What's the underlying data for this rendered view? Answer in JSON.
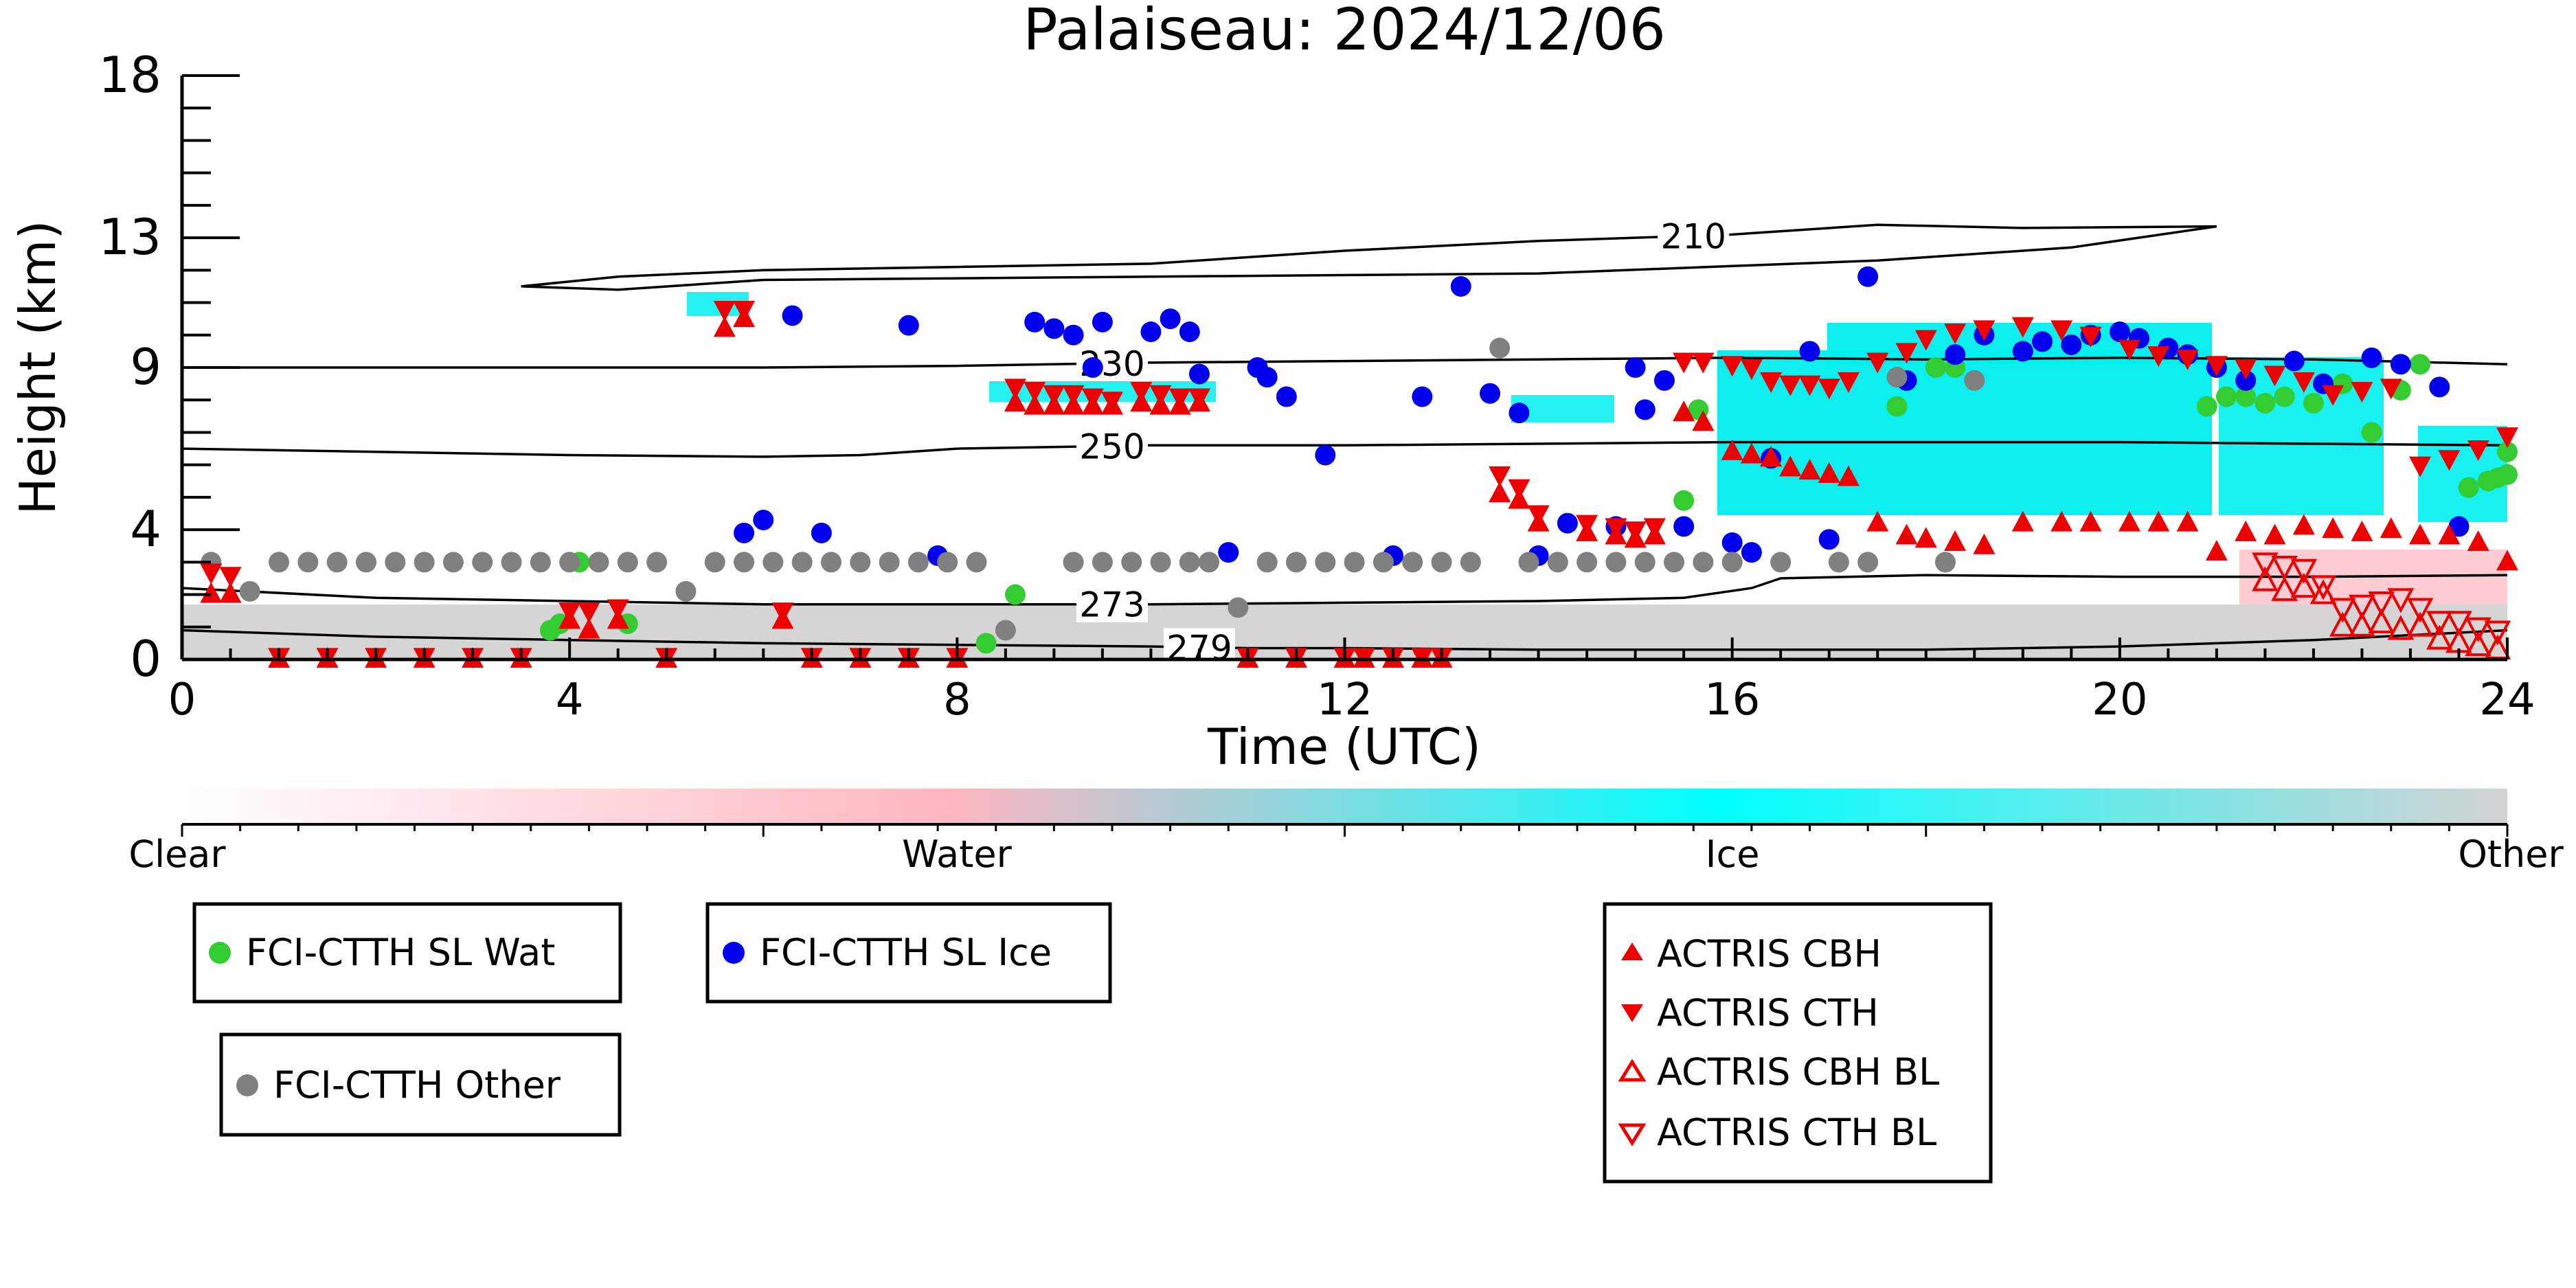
{
  "chart_data": {
    "type": "scatter",
    "title": "Palaiseau: 2024/12/06",
    "xlabel": "Time (UTC)",
    "ylabel": "Height (km)",
    "xlim": [
      0,
      24
    ],
    "ylim": [
      0,
      18
    ],
    "x_ticks": [
      0,
      4,
      8,
      12,
      16,
      20,
      24
    ],
    "y_ticks": [
      0,
      4,
      9,
      13,
      18
    ],
    "y_tick_labels": [
      "0",
      "4",
      "9",
      "13",
      "18"
    ],
    "grid": false,
    "colorbar": {
      "labels": [
        "Clear",
        "Water",
        "Ice",
        "Other"
      ],
      "colors": [
        "#ffffff",
        "#ffb6c1",
        "#00ffff",
        "#d3d3d3"
      ]
    },
    "contours": [
      {
        "label": "210",
        "label_x": 15.6,
        "points": [
          [
            3.5,
            11.5
          ],
          [
            4.5,
            11.8
          ],
          [
            6,
            12.0
          ],
          [
            8,
            12.1
          ],
          [
            10,
            12.2
          ],
          [
            12,
            12.6
          ],
          [
            14,
            12.9
          ],
          [
            16,
            13.1
          ],
          [
            17.5,
            13.4
          ],
          [
            19,
            13.3
          ],
          [
            21,
            13.35
          ],
          [
            19.5,
            12.7
          ],
          [
            17.5,
            12.3
          ],
          [
            14,
            11.9
          ],
          [
            10,
            11.8
          ],
          [
            6,
            11.7
          ],
          [
            4.5,
            11.4
          ],
          [
            3.5,
            11.5
          ]
        ]
      },
      {
        "label": "230",
        "label_x": 9.6,
        "points": [
          [
            0,
            9.0
          ],
          [
            2,
            9.0
          ],
          [
            4,
            9.0
          ],
          [
            6,
            9.0
          ],
          [
            8,
            9.05
          ],
          [
            10,
            9.15
          ],
          [
            12,
            9.2
          ],
          [
            14,
            9.25
          ],
          [
            16,
            9.3
          ],
          [
            18,
            9.25
          ],
          [
            20,
            9.3
          ],
          [
            22,
            9.25
          ],
          [
            24,
            9.1
          ]
        ]
      },
      {
        "label": "250",
        "label_x": 9.6,
        "points": [
          [
            0,
            6.5
          ],
          [
            2,
            6.4
          ],
          [
            4,
            6.3
          ],
          [
            6,
            6.25
          ],
          [
            7,
            6.3
          ],
          [
            8,
            6.5
          ],
          [
            10,
            6.6
          ],
          [
            12,
            6.6
          ],
          [
            14,
            6.65
          ],
          [
            16,
            6.7
          ],
          [
            18,
            6.7
          ],
          [
            20,
            6.7
          ],
          [
            22,
            6.65
          ],
          [
            24,
            6.6
          ]
        ]
      },
      {
        "label": "273",
        "label_x": 9.6,
        "points": [
          [
            0,
            2.2
          ],
          [
            2,
            1.9
          ],
          [
            4,
            1.8
          ],
          [
            6,
            1.7
          ],
          [
            8,
            1.7
          ],
          [
            10,
            1.7
          ],
          [
            12,
            1.75
          ],
          [
            14,
            1.8
          ],
          [
            15.5,
            1.9
          ],
          [
            16.2,
            2.2
          ],
          [
            16.5,
            2.5
          ],
          [
            18,
            2.6
          ],
          [
            20,
            2.55
          ],
          [
            22,
            2.55
          ],
          [
            24,
            2.6
          ]
        ]
      },
      {
        "label": "279",
        "label_x": 10.5,
        "points": [
          [
            0,
            0.9
          ],
          [
            2,
            0.7
          ],
          [
            4,
            0.6
          ],
          [
            6,
            0.5
          ],
          [
            8,
            0.45
          ],
          [
            10,
            0.4
          ],
          [
            11,
            0.35
          ],
          [
            12,
            0.35
          ],
          [
            14,
            0.3
          ],
          [
            16,
            0.3
          ],
          [
            18,
            0.3
          ],
          [
            20,
            0.4
          ],
          [
            22,
            0.6
          ],
          [
            24,
            0.9
          ]
        ]
      }
    ],
    "series": [
      {
        "name": "FCI-CTTH SL Wat",
        "marker": "circle",
        "color": "#33cc33",
        "x": [
          3.8,
          3.9,
          4.1,
          4.6,
          8.3,
          8.6,
          15.5,
          15.65,
          17.7,
          18.1,
          18.3,
          19.0,
          20.9,
          21.1,
          21.3,
          21.5,
          21.7,
          22.0,
          22.3,
          22.6,
          22.9,
          23.1,
          23.9,
          24.0,
          24.0,
          23.8,
          23.6
        ],
        "y": [
          0.9,
          1.1,
          3.0,
          1.1,
          0.5,
          2.0,
          4.9,
          7.7,
          7.8,
          9.0,
          9.0,
          9.5,
          7.8,
          8.1,
          8.1,
          7.9,
          8.1,
          7.9,
          8.5,
          7.0,
          8.3,
          9.1,
          5.6,
          5.7,
          6.4,
          5.5,
          5.3
        ]
      },
      {
        "name": "FCI-CTTH SL Ice",
        "marker": "circle",
        "color": "#0000ee",
        "x": [
          5.8,
          6.0,
          6.3,
          6.6,
          7.5,
          7.8,
          8.8,
          9.0,
          9.2,
          9.4,
          9.5,
          10.0,
          10.2,
          10.4,
          10.5,
          10.8,
          11.1,
          11.2,
          11.4,
          11.8,
          12.5,
          12.8,
          13.2,
          13.5,
          13.8,
          14.0,
          14.3,
          14.8,
          15.0,
          15.1,
          15.3,
          15.5,
          16.0,
          16.2,
          16.4,
          16.8,
          17.0,
          17.4,
          17.8,
          18.3,
          18.6,
          19.0,
          19.2,
          19.5,
          19.7,
          20.0,
          20.2,
          20.5,
          20.7,
          21.0,
          21.3,
          21.8,
          22.1,
          22.6,
          22.9,
          23.3,
          23.5
        ],
        "y": [
          3.9,
          4.3,
          10.6,
          3.9,
          10.3,
          3.2,
          10.4,
          10.2,
          10.0,
          9.0,
          10.4,
          10.1,
          10.5,
          10.1,
          8.8,
          3.3,
          9.0,
          8.7,
          8.1,
          6.3,
          3.2,
          8.1,
          11.5,
          8.2,
          7.6,
          3.2,
          4.2,
          4.1,
          9.0,
          7.7,
          8.6,
          4.1,
          3.6,
          3.3,
          6.2,
          9.5,
          3.7,
          11.8,
          8.6,
          9.4,
          10.0,
          9.5,
          9.8,
          9.7,
          10.0,
          10.1,
          9.9,
          9.6,
          9.4,
          9.0,
          8.6,
          9.2,
          8.5,
          9.3,
          9.1,
          8.4,
          4.1
        ]
      },
      {
        "name": "FCI-CTTH Other",
        "marker": "circle",
        "color": "#808080",
        "x": [
          0.3,
          0.7,
          1.0,
          1.3,
          1.6,
          1.9,
          2.2,
          2.5,
          2.8,
          3.1,
          3.4,
          3.7,
          4.0,
          4.3,
          4.6,
          4.9,
          5.2,
          5.5,
          5.8,
          6.1,
          6.4,
          6.7,
          7.0,
          7.3,
          7.6,
          7.9,
          8.2,
          8.5,
          9.2,
          9.5,
          9.8,
          10.1,
          10.4,
          10.6,
          10.9,
          11.2,
          11.5,
          11.8,
          12.1,
          12.4,
          12.7,
          13.0,
          13.3,
          13.6,
          13.9,
          14.2,
          14.5,
          14.8,
          15.1,
          15.4,
          15.7,
          16.0,
          16.5,
          17.1,
          17.4,
          17.7,
          18.2,
          18.5
        ],
        "y": [
          3.0,
          2.1,
          3.0,
          3.0,
          3.0,
          3.0,
          3.0,
          3.0,
          3.0,
          3.0,
          3.0,
          3.0,
          3.0,
          3.0,
          3.0,
          3.0,
          2.1,
          3.0,
          3.0,
          3.0,
          3.0,
          3.0,
          3.0,
          3.0,
          3.0,
          3.0,
          3.0,
          0.9,
          3.0,
          3.0,
          3.0,
          3.0,
          3.0,
          3.0,
          1.6,
          3.0,
          3.0,
          3.0,
          3.0,
          3.0,
          3.0,
          3.0,
          3.0,
          9.6,
          3.0,
          3.0,
          3.0,
          3.0,
          3.0,
          3.0,
          3.0,
          3.0,
          3.0,
          3.0,
          3.0,
          8.7,
          3.0,
          8.6
        ]
      },
      {
        "name": "ACTRIS CBH",
        "marker": "triangle-up",
        "color": "#ee0000",
        "x": [
          0.3,
          0.5,
          1.0,
          1.5,
          2.0,
          2.5,
          3.0,
          3.5,
          4.0,
          4.2,
          4.5,
          5.0,
          5.6,
          5.8,
          6.2,
          6.5,
          7.0,
          7.5,
          8.0,
          8.6,
          8.8,
          9.0,
          9.2,
          9.4,
          9.6,
          9.9,
          10.1,
          10.3,
          10.5,
          11.0,
          11.5,
          12.0,
          12.2,
          12.5,
          12.8,
          13.0,
          13.6,
          13.8,
          14.0,
          14.5,
          14.8,
          15.0,
          15.2,
          15.5,
          15.7,
          16.0,
          16.2,
          16.4,
          16.6,
          16.8,
          17.0,
          17.2,
          17.5,
          17.8,
          18.0,
          18.3,
          18.6,
          19.0,
          19.4,
          19.7,
          20.1,
          20.4,
          20.7,
          21.0,
          21.3,
          21.6,
          21.9,
          22.2,
          22.5,
          22.8,
          23.1,
          23.4,
          23.7,
          24.0
        ],
        "y": [
          2.0,
          2.0,
          0.0,
          0.0,
          0.0,
          0.0,
          0.0,
          0.0,
          1.2,
          0.9,
          1.2,
          0.0,
          10.2,
          10.5,
          1.2,
          0.0,
          0.0,
          0.0,
          0.0,
          7.9,
          7.8,
          7.8,
          7.8,
          7.8,
          7.8,
          7.9,
          7.8,
          7.8,
          7.9,
          0.0,
          0.0,
          0.0,
          0.0,
          0.0,
          0.0,
          0.0,
          5.1,
          4.9,
          4.2,
          3.9,
          3.8,
          3.7,
          3.8,
          7.6,
          7.3,
          6.4,
          6.3,
          6.2,
          5.9,
          5.8,
          5.7,
          5.6,
          4.2,
          3.8,
          3.7,
          3.6,
          3.5,
          4.2,
          4.2,
          4.2,
          4.2,
          4.2,
          4.2,
          3.3,
          3.9,
          3.8,
          4.1,
          4.0,
          3.9,
          4.0,
          3.8,
          3.8,
          3.6,
          3.0
        ]
      },
      {
        "name": "ACTRIS CTH",
        "marker": "triangle-down",
        "color": "#ee0000",
        "x": [
          0.3,
          0.5,
          1.0,
          1.5,
          2.0,
          2.5,
          3.0,
          3.5,
          4.0,
          4.2,
          4.5,
          5.0,
          5.6,
          5.8,
          6.2,
          6.5,
          7.0,
          7.5,
          8.0,
          8.6,
          8.8,
          9.0,
          9.2,
          9.4,
          9.6,
          9.9,
          10.1,
          10.3,
          10.5,
          11.0,
          11.5,
          12.0,
          12.2,
          12.5,
          12.8,
          13.0,
          13.6,
          13.8,
          14.0,
          14.5,
          14.8,
          15.0,
          15.2,
          15.5,
          15.7,
          16.0,
          16.2,
          16.4,
          16.6,
          16.8,
          17.0,
          17.2,
          17.5,
          17.8,
          18.0,
          18.3,
          18.6,
          19.0,
          19.4,
          19.7,
          20.1,
          20.4,
          20.7,
          21.0,
          21.3,
          21.6,
          21.9,
          22.2,
          22.5,
          22.8,
          23.1,
          23.4,
          23.7,
          24.0
        ],
        "y": [
          2.7,
          2.6,
          0.1,
          0.1,
          0.1,
          0.1,
          0.1,
          0.1,
          1.5,
          1.5,
          1.6,
          0.1,
          10.8,
          10.8,
          1.5,
          0.1,
          0.1,
          0.1,
          0.1,
          8.4,
          8.3,
          8.2,
          8.2,
          8.1,
          8.0,
          8.3,
          8.2,
          8.1,
          8.1,
          0.1,
          0.1,
          0.1,
          0.1,
          0.1,
          0.1,
          0.1,
          5.7,
          5.3,
          4.5,
          4.2,
          4.1,
          4.0,
          4.1,
          9.2,
          9.2,
          9.1,
          9.0,
          8.6,
          8.5,
          8.5,
          8.4,
          8.6,
          9.2,
          9.5,
          9.9,
          10.1,
          10.2,
          10.3,
          10.2,
          10.0,
          9.6,
          9.4,
          9.3,
          9.1,
          9.0,
          8.8,
          8.6,
          8.2,
          8.3,
          8.4,
          6.0,
          6.2,
          6.5,
          6.9
        ]
      },
      {
        "name": "ACTRIS CBH BL",
        "marker": "triangle-up-open",
        "color": "#ee0000",
        "x": [
          21.5,
          21.7,
          21.9,
          22.1,
          22.3,
          22.5,
          22.7,
          22.9,
          23.1,
          23.3,
          23.5,
          23.7,
          23.9
        ],
        "y": [
          2.4,
          2.1,
          2.2,
          2.0,
          1.0,
          1.0,
          1.1,
          0.9,
          1.0,
          0.6,
          0.5,
          0.4,
          0.3
        ]
      },
      {
        "name": "ACTRIS CTH BL",
        "marker": "triangle-down-open",
        "color": "#ee0000",
        "x": [
          21.5,
          21.7,
          21.9,
          22.1,
          22.3,
          22.5,
          22.7,
          22.9,
          23.1,
          23.3,
          23.5,
          23.7,
          23.9
        ],
        "y": [
          3.0,
          2.9,
          2.8,
          2.3,
          1.6,
          1.7,
          1.8,
          1.9,
          1.6,
          1.2,
          1.2,
          1.0,
          0.9
        ]
      }
    ],
    "legend": [
      {
        "label": "FCI-CTTH SL Wat",
        "marker": "circle",
        "color": "#33cc33"
      },
      {
        "label": "FCI-CTTH SL Ice",
        "marker": "circle",
        "color": "#0000ee"
      },
      {
        "label": "FCI-CTTH Other",
        "marker": "circle",
        "color": "#808080"
      },
      {
        "label": "ACTRIS CBH",
        "marker": "triangle-up",
        "color": "#ee0000"
      },
      {
        "label": "ACTRIS CTH",
        "marker": "triangle-down",
        "color": "#ee0000"
      },
      {
        "label": "ACTRIS CBH BL",
        "marker": "triangle-up-open",
        "color": "#ee0000"
      },
      {
        "label": "ACTRIS CTH BL",
        "marker": "triangle-down-open",
        "color": "#ee0000"
      }
    ]
  }
}
